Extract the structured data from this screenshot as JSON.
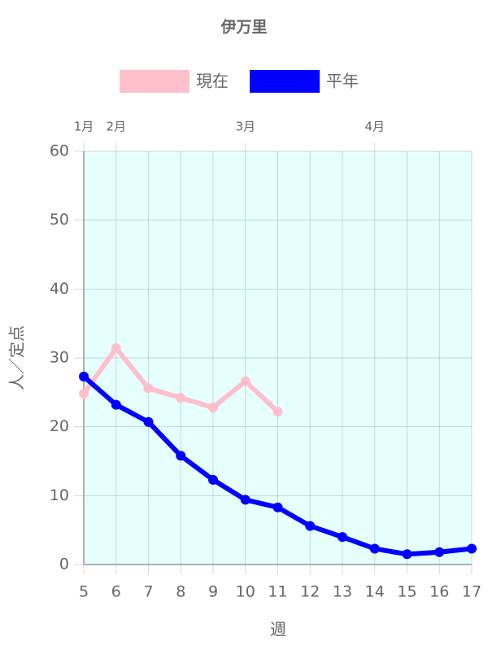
{
  "chart_data": {
    "type": "line",
    "title": "伊万里",
    "x": [
      5,
      6,
      7,
      8,
      9,
      10,
      11,
      12,
      13,
      14,
      15,
      16,
      17
    ],
    "xlim": [
      5,
      17
    ],
    "xticks": [
      5,
      6,
      7,
      8,
      9,
      10,
      11,
      12,
      13,
      14,
      15,
      16,
      17
    ],
    "x2ticks": [
      {
        "value": 5,
        "label": "1月"
      },
      {
        "value": 6,
        "label": "2月"
      },
      {
        "value": 10,
        "label": "3月"
      },
      {
        "value": 14,
        "label": "4月"
      }
    ],
    "ylim": [
      0,
      60
    ],
    "yticks": [
      0,
      10,
      20,
      30,
      40,
      50,
      60
    ],
    "xlabel": "週",
    "ylabel": "人／定点",
    "grid": true,
    "legend": "top",
    "series": [
      {
        "name": "現在",
        "color": "#ffc0cb",
        "values": [
          24.8,
          31.4,
          25.6,
          24.2,
          22.8,
          26.6,
          22.2,
          null,
          null,
          null,
          null,
          null,
          null
        ]
      },
      {
        "name": "平年",
        "color": "#0000ff",
        "values": [
          27.3,
          23.2,
          20.7,
          15.8,
          12.3,
          9.4,
          8.3,
          5.6,
          4.0,
          2.3,
          1.5,
          1.8,
          2.3
        ]
      }
    ]
  }
}
